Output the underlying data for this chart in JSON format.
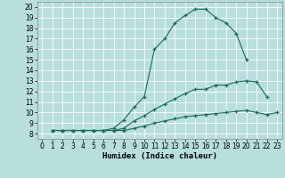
{
  "xlabel": "Humidex (Indice chaleur)",
  "bg_color": "#b8dede",
  "line_color": "#1a6b5a",
  "grid_color": "#ffffff",
  "xlim": [
    -0.5,
    23.5
  ],
  "ylim": [
    7.5,
    20.5
  ],
  "xticks": [
    0,
    1,
    2,
    3,
    4,
    5,
    6,
    7,
    8,
    9,
    10,
    11,
    12,
    13,
    14,
    15,
    16,
    17,
    18,
    19,
    20,
    21,
    22,
    23
  ],
  "yticks": [
    8,
    9,
    10,
    11,
    12,
    13,
    14,
    15,
    16,
    17,
    18,
    19,
    20
  ],
  "curve1_x": [
    1,
    2,
    3,
    4,
    5,
    6,
    7,
    8,
    9,
    10,
    11,
    12,
    13,
    14,
    15,
    16,
    17,
    18,
    19,
    20
  ],
  "curve1_y": [
    8.3,
    8.3,
    8.3,
    8.3,
    8.3,
    8.3,
    8.5,
    9.3,
    10.5,
    11.5,
    16.0,
    17.0,
    18.5,
    19.2,
    19.8,
    19.8,
    19.0,
    18.5,
    17.5,
    15.0
  ],
  "curve2_x": [
    1,
    2,
    3,
    4,
    5,
    6,
    7,
    8,
    9,
    10,
    11,
    12,
    13,
    14,
    15,
    16,
    17,
    18,
    19,
    20,
    21,
    22
  ],
  "curve2_y": [
    8.3,
    8.3,
    8.3,
    8.3,
    8.3,
    8.3,
    8.3,
    8.5,
    9.2,
    9.7,
    10.3,
    10.8,
    11.3,
    11.8,
    12.2,
    12.2,
    12.6,
    12.6,
    12.9,
    13.0,
    12.9,
    11.5
  ],
  "curve3_x": [
    1,
    2,
    3,
    4,
    5,
    6,
    7,
    8,
    9,
    10,
    11,
    12,
    13,
    14,
    15,
    16,
    17,
    18,
    19,
    20,
    21,
    22,
    23
  ],
  "curve3_y": [
    8.3,
    8.3,
    8.3,
    8.3,
    8.3,
    8.3,
    8.3,
    8.3,
    8.5,
    8.7,
    9.0,
    9.2,
    9.4,
    9.6,
    9.7,
    9.8,
    9.9,
    10.0,
    10.1,
    10.2,
    10.0,
    9.8,
    10.0
  ],
  "xlabel_fontsize": 6.5,
  "tick_fontsize": 5.5
}
